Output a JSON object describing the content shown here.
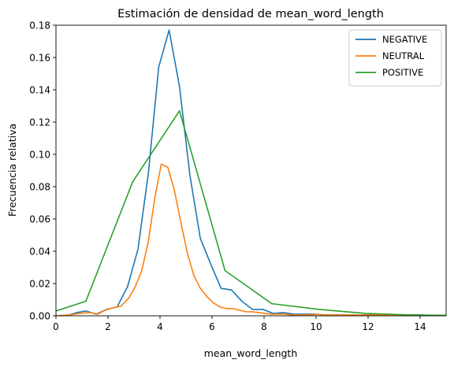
{
  "chart_data": {
    "type": "line",
    "title": "Estimación de densidad de mean_word_length",
    "xlabel": "mean_word_length",
    "ylabel": "Frecuencia relativa",
    "xlim": [
      0,
      15
    ],
    "ylim": [
      0,
      0.18
    ],
    "x_ticks": [
      "0",
      "2",
      "4",
      "6",
      "8",
      "10",
      "12",
      "14"
    ],
    "y_ticks": [
      "0.00",
      "0.02",
      "0.04",
      "0.06",
      "0.08",
      "0.10",
      "0.12",
      "0.14",
      "0.16",
      "0.18"
    ],
    "grid": false,
    "legend_position": "top-right",
    "series": [
      {
        "name": "NEGATIVE",
        "color": "#1f77b4",
        "x": [
          0,
          0.5,
          0.8,
          1.15,
          1.55,
          1.95,
          2.35,
          2.75,
          3.15,
          3.55,
          3.95,
          4.35,
          4.75,
          5.15,
          5.55,
          5.95,
          6.35,
          6.75,
          7.15,
          7.55,
          7.95,
          8.35,
          8.75,
          9.15,
          9.55,
          9.95,
          10.35,
          10.75,
          11.15,
          11.55,
          11.95,
          12.35,
          12.75,
          13.15,
          13.55,
          13.95,
          14.35,
          14.75,
          15
        ],
        "y": [
          0,
          0.0005,
          0.002,
          0.003,
          0.001,
          0.004,
          0.0055,
          0.018,
          0.041,
          0.088,
          0.154,
          0.177,
          0.142,
          0.087,
          0.048,
          0.032,
          0.017,
          0.016,
          0.009,
          0.004,
          0.004,
          0.0015,
          0.002,
          0.001,
          0.001,
          0.001,
          0.0005,
          0.0005,
          0.0005,
          0.0005,
          0.0005,
          0.0005,
          0.0005,
          0.0005,
          0.0005,
          0.0005,
          0.0003,
          0.0003,
          0.0003
        ]
      },
      {
        "name": "NEUTRAL",
        "color": "#ff7f0e",
        "x": [
          0,
          0.5,
          0.9,
          1.3,
          1.6,
          1.9,
          2.2,
          2.5,
          2.8,
          3.05,
          3.3,
          3.55,
          3.8,
          4.05,
          4.3,
          4.55,
          4.8,
          5.05,
          5.3,
          5.55,
          5.8,
          6.05,
          6.3,
          6.55,
          6.8,
          7.05,
          7.3,
          7.55,
          7.8,
          8.05,
          8.3,
          8.55,
          8.8,
          9.05,
          9.3,
          9.55,
          9.8,
          10.05,
          10.3,
          10.55,
          10.8,
          11.05,
          11.3,
          11.55,
          11.8,
          12.05,
          12.3,
          12.55,
          12.8,
          13.05,
          13.3,
          13.55,
          13.8,
          14.05,
          14.3,
          14.55,
          14.8,
          15
        ],
        "y": [
          0,
          0.0005,
          0.0015,
          0.002,
          0.001,
          0.0035,
          0.005,
          0.006,
          0.011,
          0.018,
          0.028,
          0.046,
          0.073,
          0.094,
          0.092,
          0.078,
          0.058,
          0.039,
          0.025,
          0.017,
          0.012,
          0.008,
          0.0055,
          0.0045,
          0.0045,
          0.0035,
          0.0025,
          0.0025,
          0.002,
          0.0015,
          0.001,
          0.001,
          0.001,
          0.0005,
          0.0005,
          0.0005,
          0.0005,
          0.001,
          0.0005,
          0.0005,
          0.0005,
          0.0005,
          0.0005,
          0.0005,
          0.0005,
          0.0005,
          0.0005,
          0.0005,
          0.0005,
          0.0005,
          0.0005,
          0.0005,
          0.0003,
          0.0003,
          0.0003,
          0.0003,
          0.0003,
          0.0003
        ]
      },
      {
        "name": "POSITIVE",
        "color": "#2ca02c",
        "x": [
          0,
          1.15,
          2.95,
          4.75,
          6.5,
          8.3,
          10.1,
          11.9,
          13.7,
          15
        ],
        "y": [
          0.003,
          0.009,
          0.083,
          0.127,
          0.028,
          0.0075,
          0.004,
          0.0015,
          0.0005,
          0.0003
        ]
      }
    ]
  }
}
